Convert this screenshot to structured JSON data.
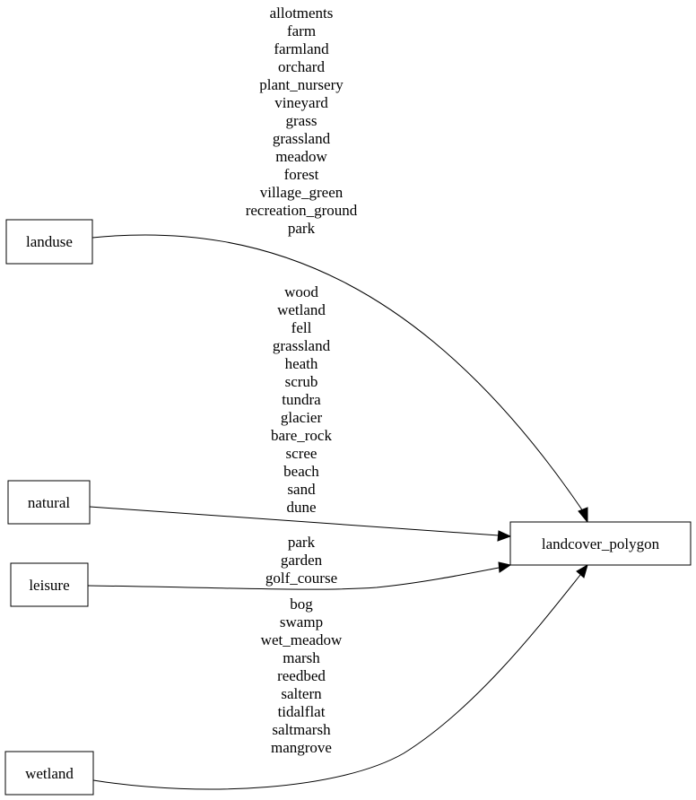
{
  "nodes": {
    "landuse": "landuse",
    "natural": "natural",
    "leisure": "leisure",
    "wetland": "wetland",
    "target": "landcover_polygon"
  },
  "edges": {
    "landuse": [
      "allotments",
      "farm",
      "farmland",
      "orchard",
      "plant_nursery",
      "vineyard",
      "grass",
      "grassland",
      "meadow",
      "forest",
      "village_green",
      "recreation_ground",
      "park"
    ],
    "natural": [
      "wood",
      "wetland",
      "fell",
      "grassland",
      "heath",
      "scrub",
      "tundra",
      "glacier",
      "bare_rock",
      "scree",
      "beach",
      "sand",
      "dune"
    ],
    "leisure": [
      "park",
      "garden",
      "golf_course"
    ],
    "wetland": [
      "bog",
      "swamp",
      "wet_meadow",
      "marsh",
      "reedbed",
      "saltern",
      "tidalflat",
      "saltmarsh",
      "mangrove"
    ]
  }
}
